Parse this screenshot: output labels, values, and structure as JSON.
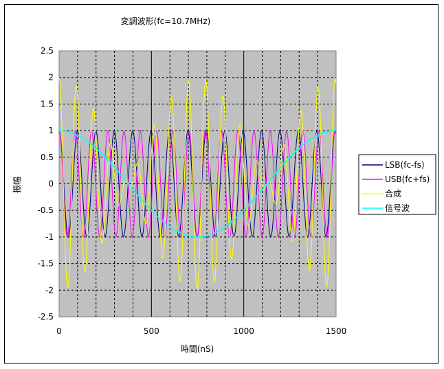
{
  "chart_data": {
    "type": "line",
    "title": "変調波形(fc=10.7MHz)",
    "xlabel": "時間(nS)",
    "ylabel": "振幅",
    "xlim": [
      0,
      1500
    ],
    "ylim": [
      -2.5,
      2.5
    ],
    "xticks": [
      "0",
      "500",
      "1000",
      "1500"
    ],
    "yticks": [
      "2.5",
      "2",
      "1.5",
      "1",
      "0.5",
      "0",
      "-0.5",
      "-1",
      "-1.5",
      "-2",
      "-2.5"
    ],
    "grid": true,
    "legend_position": "right",
    "carrier_frequency_mhz": 10.7,
    "signal_frequency_mhz": 0.6667,
    "x_step": 5,
    "series": [
      {
        "name": "LSB(fc-fs)",
        "color": "#000080",
        "formula": "cos(2π(fc−fs)t)"
      },
      {
        "name": "USB(fc+fs)",
        "color": "#ff00ff",
        "formula": "cos(2π(fc+fs)t)"
      },
      {
        "name": "合成",
        "color": "#ffff00",
        "formula": "LSB + USB"
      },
      {
        "name": "信号波",
        "color": "#00ffff",
        "formula": "cos(2π·fs·t)"
      }
    ]
  }
}
